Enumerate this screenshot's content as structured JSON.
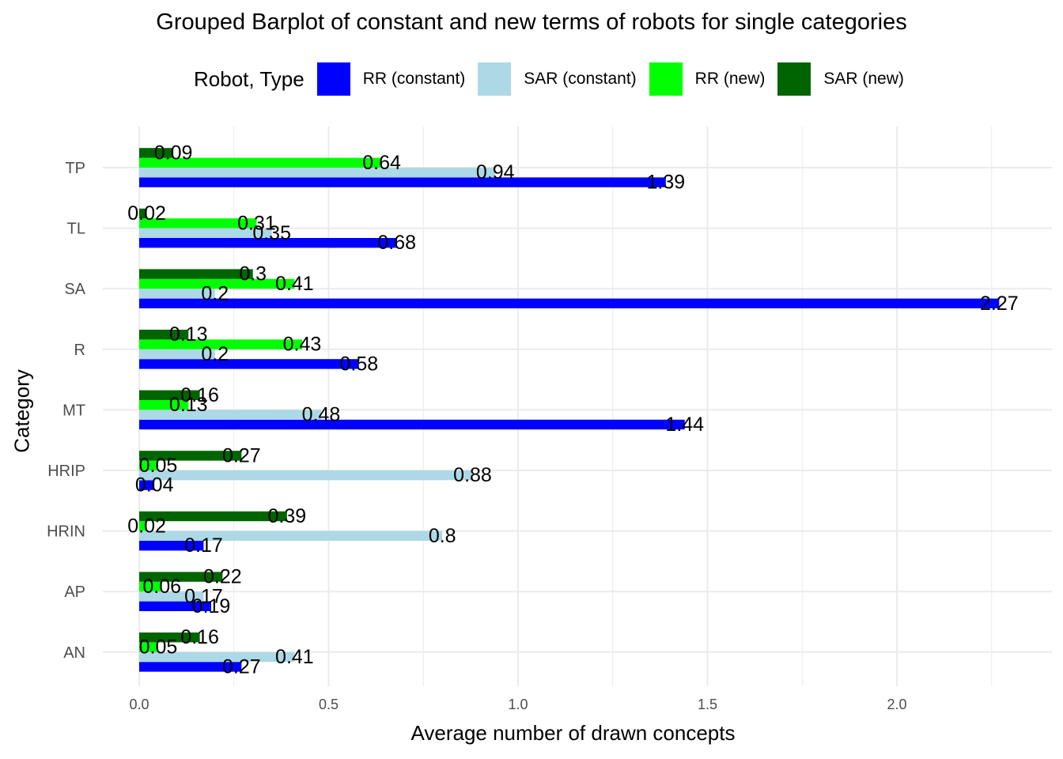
{
  "chart_data": {
    "type": "bar",
    "orientation": "horizontal",
    "title": "Grouped Barplot of constant and new terms of robots for single categories",
    "xlabel": "Average number of drawn concepts",
    "ylabel": "Category",
    "legend_title": "Robot, Type",
    "legend_position": "top",
    "grid": true,
    "xlim": [
      0,
      2.38
    ],
    "x_ticks": [
      "0.0",
      "0.5",
      "1.0",
      "1.5",
      "2.0"
    ],
    "x_tick_values": [
      0,
      0.5,
      1.0,
      1.5,
      2.0
    ],
    "categories": [
      "TP",
      "TL",
      "SA",
      "R",
      "MT",
      "HRIP",
      "HRIN",
      "AP",
      "AN"
    ],
    "series": [
      {
        "name": "RR (constant)",
        "color": "#0000ff",
        "values": [
          1.39,
          0.68,
          2.27,
          0.58,
          1.44,
          0.04,
          0.17,
          0.19,
          0.27
        ],
        "labels": [
          "1.39",
          "0.68",
          "2.27",
          "0.58",
          "1.44",
          "0.04",
          "0.17",
          "0.19",
          "0.27"
        ]
      },
      {
        "name": "SAR (constant)",
        "color": "#add8e6",
        "values": [
          0.94,
          0.35,
          0.2,
          0.2,
          0.48,
          0.88,
          0.8,
          0.17,
          0.41
        ],
        "labels": [
          "0.94",
          "0.35",
          "0.2",
          "0.2",
          "0.48",
          "0.88",
          "0.8",
          "0.17",
          "0.41"
        ]
      },
      {
        "name": "RR (new)",
        "color": "#00ff00",
        "values": [
          0.64,
          0.31,
          0.41,
          0.43,
          0.13,
          0.05,
          0.02,
          0.06,
          0.05
        ],
        "labels": [
          "0.64",
          "0.31",
          "0.41",
          "0.43",
          "0.13",
          "0.05",
          "0.02",
          "0.06",
          "0.05"
        ]
      },
      {
        "name": "SAR (new)",
        "color": "#006400",
        "values": [
          0.09,
          0.02,
          0.3,
          0.13,
          0.16,
          0.27,
          0.39,
          0.22,
          0.16
        ],
        "labels": [
          "0.09",
          "0.02",
          "0.3",
          "0.13",
          "0.16",
          "0.27",
          "0.39",
          "0.22",
          "0.16"
        ]
      }
    ]
  }
}
